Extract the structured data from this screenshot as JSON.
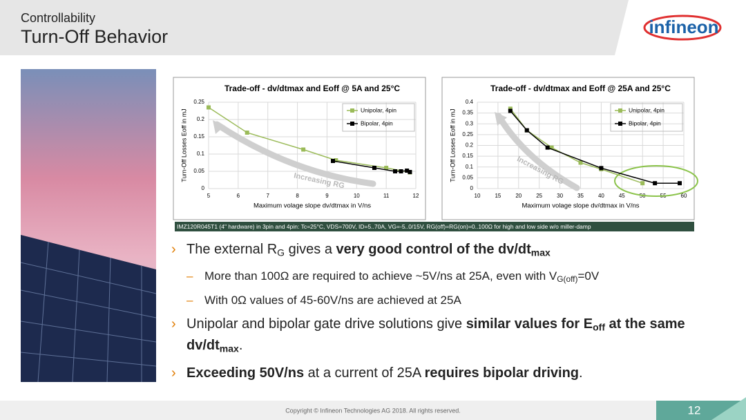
{
  "header": {
    "section": "Controllability",
    "title": "Turn-Off Behavior",
    "logo": "infineon"
  },
  "chart_data": [
    {
      "type": "line",
      "title": "Trade-off - dv/dtmax and Eoff @ 5A and 25°C",
      "x_label": "Maximum volage slope dv/dtmax in V/ns",
      "y_label": "Turn-Off Losses Eoff in mJ",
      "xlim": [
        5,
        12
      ],
      "xticks": [
        5,
        6,
        7,
        8,
        9,
        10,
        11,
        12
      ],
      "ylim": [
        0,
        0.25
      ],
      "yticks": [
        0,
        0.05,
        0.1,
        0.15,
        0.2,
        0.25
      ],
      "grid": true,
      "legend": "top-right",
      "annotation": "Increasing RG",
      "series": [
        {
          "name": "Unipolar, 4pin",
          "color": "#9bbb59",
          "x": [
            5,
            6.3,
            8.2,
            9.3,
            11,
            11.8
          ],
          "y": [
            0.235,
            0.162,
            0.113,
            0.082,
            0.06,
            0.047
          ]
        },
        {
          "name": "Bipolar, 4pin",
          "color": "#000000",
          "x": [
            9.2,
            10.6,
            11.3,
            11.5,
            11.7,
            11.8
          ],
          "y": [
            0.08,
            0.06,
            0.05,
            0.05,
            0.052,
            0.048
          ]
        }
      ]
    },
    {
      "type": "line",
      "title": "Trade-off - dv/dtmax and Eoff @ 25A and 25°C",
      "x_label": "Maximum volage slope dv/dtmax in V/ns",
      "y_label": "Turn-Off Losses Eoff in mJ",
      "xlim": [
        10,
        60
      ],
      "xticks": [
        10,
        15,
        20,
        25,
        30,
        35,
        40,
        45,
        50,
        55,
        60
      ],
      "ylim": [
        0,
        0.4
      ],
      "yticks": [
        0,
        0.05,
        0.1,
        0.15,
        0.2,
        0.25,
        0.3,
        0.35,
        0.4
      ],
      "grid": true,
      "legend": "top-right",
      "annotation": "Increasing RG",
      "series": [
        {
          "name": "Unipolar, 4pin",
          "color": "#9bbb59",
          "x": [
            18,
            22,
            28,
            35,
            40,
            50
          ],
          "y": [
            0.37,
            0.27,
            0.19,
            0.12,
            0.09,
            0.025
          ]
        },
        {
          "name": "Bipolar, 4pin",
          "color": "#000000",
          "x": [
            18,
            22,
            27,
            40,
            53,
            59
          ],
          "y": [
            0.36,
            0.27,
            0.19,
            0.095,
            0.025,
            0.025
          ]
        }
      ]
    }
  ],
  "test_conditions": "IMZ120R045T1 (4\" hardware) in 3pin and 4pin: Tc=25°C, VDS=700V, ID=5..70A, VG=-5..0/15V, RG(off)=RG(on)=0..100Ω for high and low side w/o miller-damp",
  "bullets": [
    {
      "level": 1,
      "segments": [
        {
          "text": "The external R"
        },
        {
          "text": "G",
          "sub": true
        },
        {
          "text": " gives a "
        },
        {
          "text": "very good control of the dv/dt",
          "bold": true
        },
        {
          "text": "max",
          "bold": true,
          "sub": true
        }
      ]
    },
    {
      "level": 2,
      "segments": [
        {
          "text": "More than 100Ω are required to achieve ~5V/ns at 25A, even with V"
        },
        {
          "text": "G(off)",
          "sub": true
        },
        {
          "text": "=0V"
        }
      ]
    },
    {
      "level": 2,
      "segments": [
        {
          "text": "With 0Ω values of 45-60V/ns are achieved at 25A"
        }
      ]
    },
    {
      "level": 1,
      "segments": [
        {
          "text": "Unipolar and bipolar gate drive solutions give "
        },
        {
          "text": "similar values for E",
          "bold": true
        },
        {
          "text": "off",
          "bold": true,
          "sub": true
        },
        {
          "text": " at the same dv/dt",
          "bold": true
        },
        {
          "text": "max",
          "bold": true,
          "sub": true
        },
        {
          "text": "."
        }
      ]
    },
    {
      "level": 1,
      "segments": [
        {
          "text": "Exceeding 50V/ns",
          "bold": true
        },
        {
          "text": " at a current of 25A "
        },
        {
          "text": "requires bipolar driving",
          "bold": true
        },
        {
          "text": "."
        }
      ]
    }
  ],
  "footer": {
    "copyright": "Copyright © Infineon Technologies AG 2018. All rights reserved.",
    "page": "12"
  }
}
